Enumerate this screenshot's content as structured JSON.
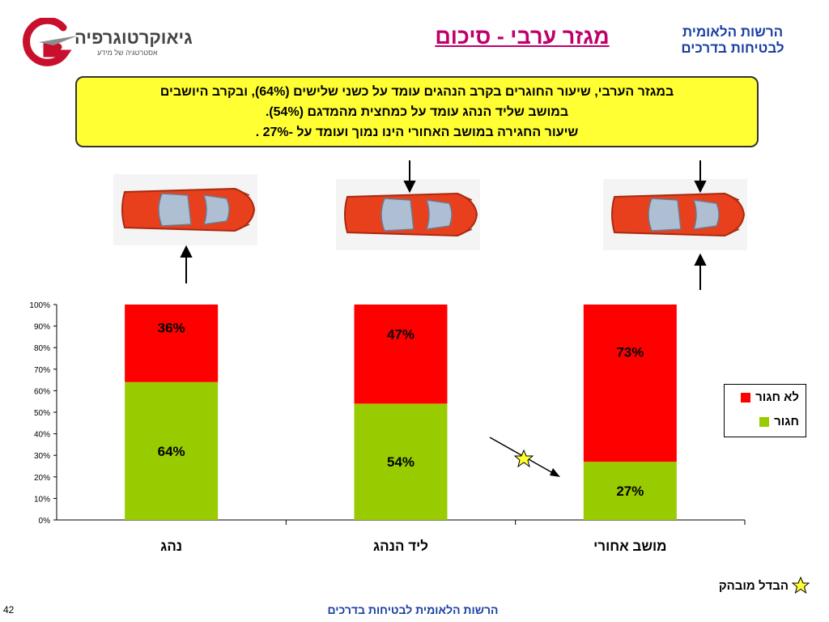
{
  "header": {
    "title": "מגזר ערבי - סיכום",
    "org_line1": "הרשות הלאומית",
    "org_line2": "לבטיחות בדרכים"
  },
  "logo": {
    "brand": "גיאוקרטוגרפיה",
    "tagline": "אסטרטגיה של מידע"
  },
  "summary": {
    "line1": "במגזר הערבי, שיעור החוגרים בקרב הנהגים עומד על כשני שלישים (64%), ובקרב היושבים",
    "line2": "במושב שליד הנהג עומד על כמחצית מהמדגם (54%).",
    "line3": "שיעור החגירה במושב האחורי הינו נמוך ועומד על -27% ."
  },
  "chart_data": {
    "type": "bar",
    "stacked": true,
    "categories": [
      "נהג",
      "ליד הנהג",
      "מושב אחורי"
    ],
    "series": [
      {
        "name": "חגור",
        "values": [
          64,
          54,
          27
        ],
        "labels": [
          "64%",
          "54%",
          "27%"
        ],
        "color": "#99cc00"
      },
      {
        "name": "לא חגור",
        "values": [
          36,
          47,
          73
        ],
        "labels": [
          "36%",
          "47%",
          "73%"
        ],
        "color": "#ff0000"
      }
    ],
    "ylim": [
      0,
      100
    ],
    "yticks": [
      "0%",
      "10%",
      "20%",
      "30%",
      "40%",
      "50%",
      "60%",
      "70%",
      "80%",
      "90%",
      "100%"
    ],
    "legend_position": "right",
    "grid": false
  },
  "annotation": {
    "legend_note": "הבדל מובהק",
    "star_color": "#ffff33"
  },
  "footer": {
    "org": "הרשות הלאומית לבטיחות בדרכים",
    "page_number": "42"
  }
}
